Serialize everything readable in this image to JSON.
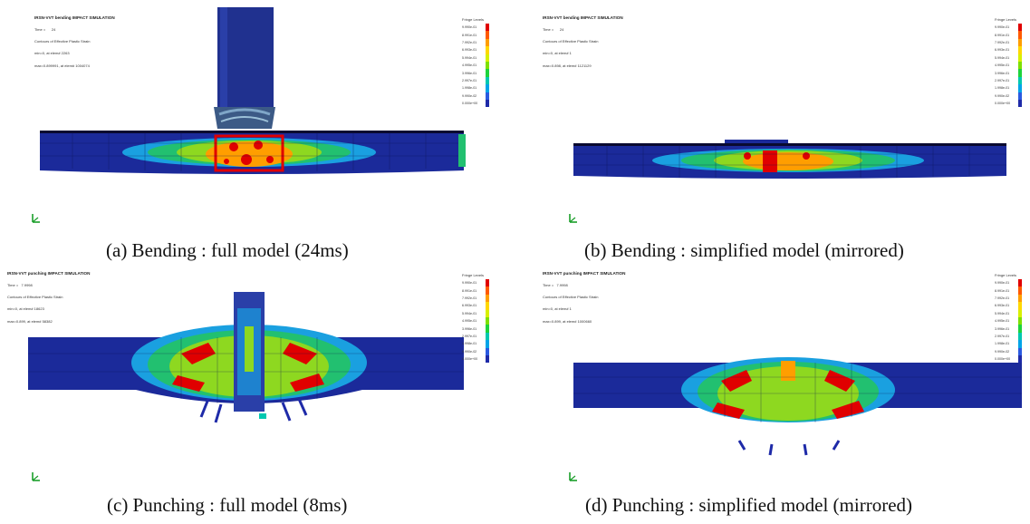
{
  "panels": [
    {
      "id": "a",
      "header": {
        "title": "IRSN-VVT bending IMPACT SIMULATION",
        "time": "Time =      24",
        "contours": "Contours of Effective Plastic Strain",
        "minval": "min=0, at elem# 2263",
        "maxval": "max=0.899991, at elem# 1004074"
      },
      "caption": "(a) Bending : full model (24ms)"
    },
    {
      "id": "b",
      "header": {
        "title": "IRSN-VVT bending IMPACT SIMULATION",
        "time": "Time =      24",
        "contours": "Contours of Effective Plastic Strain",
        "minval": "min=0, at elem# 1",
        "maxval": "max=0.898, at elem# 1121129"
      },
      "caption": "(b) Bending : simplified model (mirrored)"
    },
    {
      "id": "c",
      "header": {
        "title": "IRSN-VVT punching IMPACT SIMULATION",
        "time": "Time =   7.9998",
        "contours": "Contours of Effective Plastic Strain",
        "minval": "min=0, at elem# 18623",
        "maxval": "max=0.899, at elem# 58382"
      },
      "caption": "(c) Punching : full model (8ms)"
    },
    {
      "id": "d",
      "header": {
        "title": "IRSN-VVT punching IMPACT SIMULATION",
        "time": "Time =   7.9998",
        "contours": "Contours of Effective Plastic Strain",
        "minval": "min=0, at elem# 1",
        "maxval": "max=0.899, at elem# 1000660"
      },
      "caption": "(d) Punching : simplified model (mirrored)"
    }
  ],
  "legend": {
    "title": "Fringe Levels",
    "levels": [
      "9.990e-01",
      "8.991e-01",
      "7.992e-01",
      "6.993e-01",
      "5.994e-01",
      "4.995e-01",
      "3.996e-01",
      "2.997e-01",
      "1.998e-01",
      "9.990e-02",
      "0.000e+00"
    ],
    "colors": [
      "#e00000",
      "#ff5a00",
      "#ff9e00",
      "#ffd800",
      "#d8f000",
      "#7ee000",
      "#1ed43c",
      "#00c8b0",
      "#00a4e8",
      "#2a5ae0",
      "#1e2aa8"
    ]
  }
}
